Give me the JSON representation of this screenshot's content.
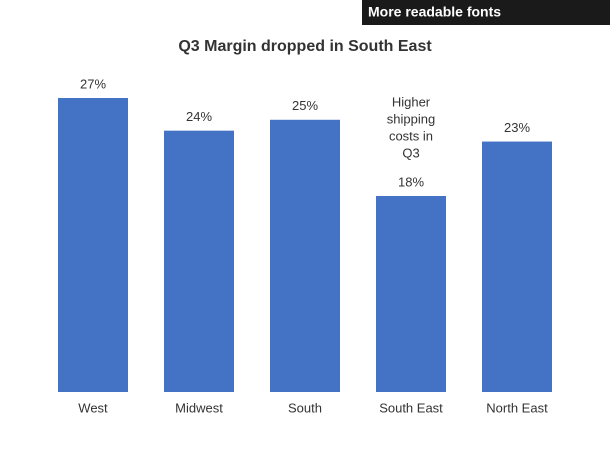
{
  "header": {
    "tag": "More readable fonts"
  },
  "chart_data": {
    "type": "bar",
    "title": "Q3 Margin dropped in South East",
    "categories": [
      "West",
      "Midwest",
      "South",
      "South East",
      "North East"
    ],
    "values": [
      27,
      24,
      25,
      18,
      23
    ],
    "value_labels": [
      "27%",
      "24%",
      "25%",
      "18%",
      "23%"
    ],
    "color": "#4472c4",
    "annotation": [
      "Higher",
      "shipping",
      "costs in",
      "Q3"
    ]
  }
}
